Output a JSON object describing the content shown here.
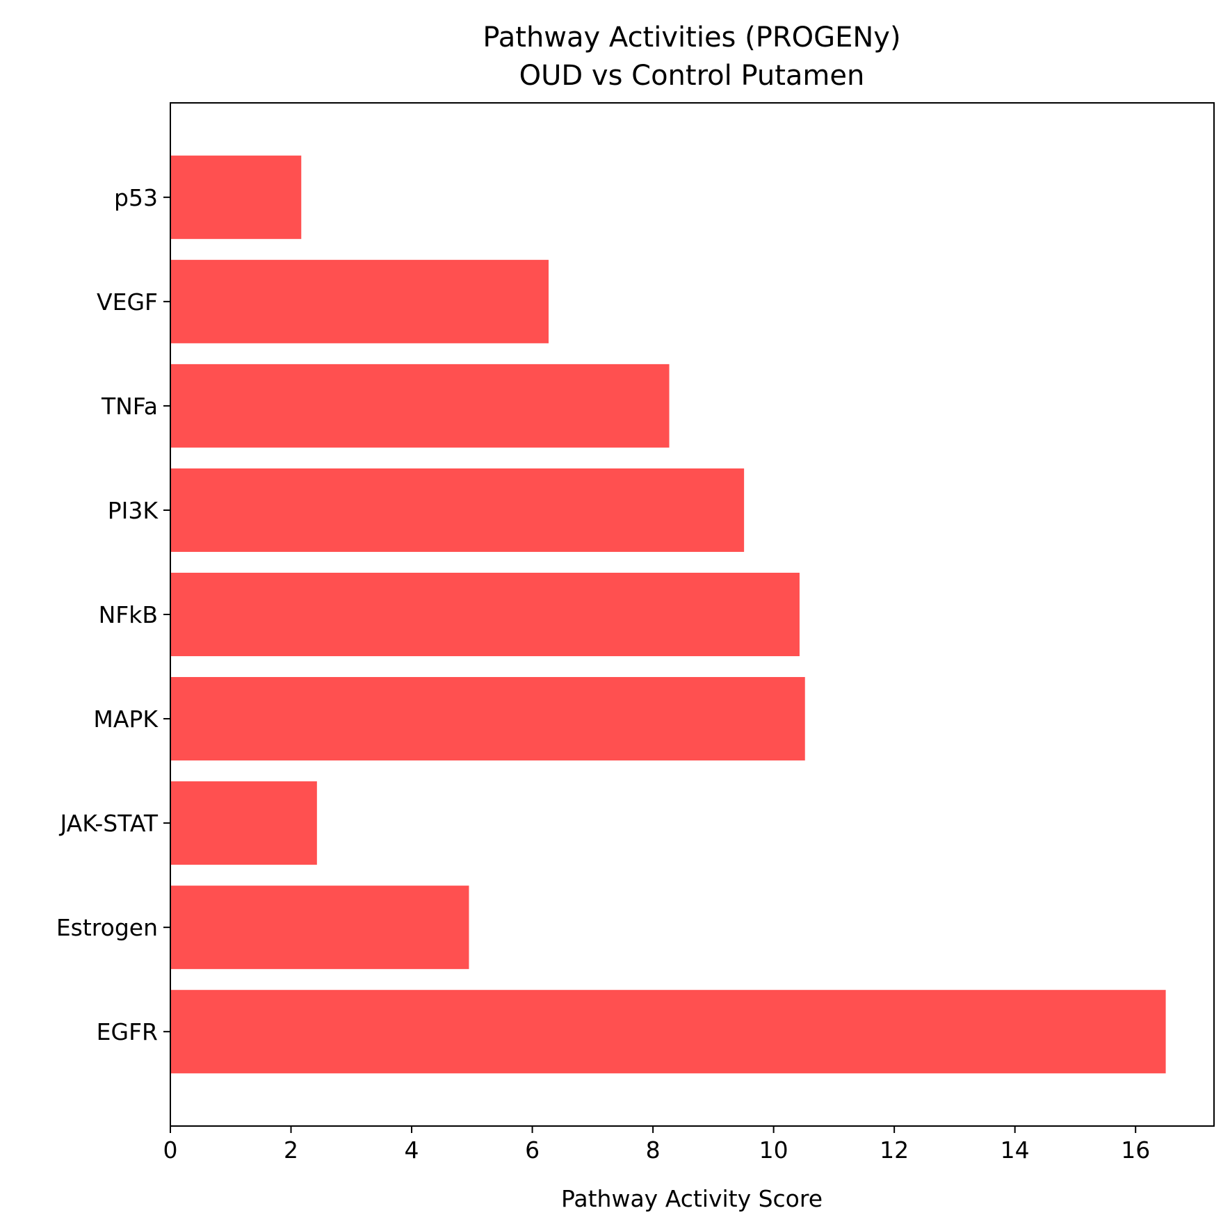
{
  "chart_data": {
    "type": "bar",
    "orientation": "horizontal",
    "title": "Pathway Activities (PROGENy)",
    "subtitle": "OUD vs Control Putamen",
    "xlabel": "Pathway Activity Score",
    "ylabel": "",
    "xlim": [
      0,
      17.3
    ],
    "xticks": [
      "0",
      "2",
      "4",
      "6",
      "8",
      "10",
      "12",
      "14",
      "16"
    ],
    "categories": [
      "EGFR",
      "Estrogen",
      "JAK-STAT",
      "MAPK",
      "NFkB",
      "PI3K",
      "TNFa",
      "VEGF",
      "p53"
    ],
    "values": [
      16.5,
      4.95,
      2.43,
      10.52,
      10.43,
      9.51,
      8.27,
      6.27,
      2.17
    ],
    "bar_color": "#ff5050",
    "grid": false,
    "legend": "none"
  }
}
